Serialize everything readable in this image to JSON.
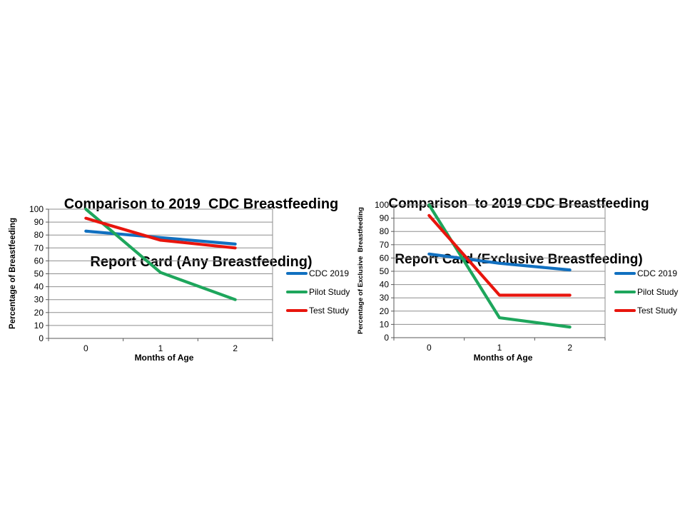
{
  "page": {
    "background": "#ffffff"
  },
  "colors": {
    "cdc_blue": "#1170C0",
    "pilot_green": "#1EA65C",
    "test_red": "#E8150D",
    "grid": "#8E8E8E",
    "axis": "#595959",
    "text": "#000000"
  },
  "chart_data": [
    {
      "type": "line",
      "title": "Comparison to 2019 CDC Breastfeeding Report Card (Any Breastfeeding)",
      "title_lines": [
        "Comparison to 2019  CDC Breastfeeding",
        "Report Card (Any Breastfeeding)"
      ],
      "xlabel": "Months of Age",
      "ylabel": "Percentage of Breastfeeding",
      "categories": [
        "0",
        "1",
        "2"
      ],
      "ylim": [
        0,
        100
      ],
      "ytick_step": 10,
      "grid": "horizontal",
      "legend_position": "right",
      "series": [
        {
          "name": "CDC 2019",
          "color": "#1170C0",
          "values": [
            83,
            78,
            73
          ]
        },
        {
          "name": "Pilot Study",
          "color": "#1EA65C",
          "values": [
            100,
            51,
            30
          ]
        },
        {
          "name": "Test Study",
          "color": "#E8150D",
          "values": [
            93,
            76,
            70
          ]
        }
      ]
    },
    {
      "type": "line",
      "title": "Comparison to 2019 CDC Breastfeeding Report Card (Exclusive Breastfeeding)",
      "title_lines": [
        "Comparison  to 2019 CDC Breastfeeding",
        "Report Card (Exclusive Breastfeeding)"
      ],
      "xlabel": "Months of Age",
      "ylabel": "Percentage of Exclusive  Breastfeeding",
      "categories": [
        "0",
        "1",
        "2"
      ],
      "ylim": [
        0,
        100
      ],
      "ytick_step": 10,
      "grid": "horizontal",
      "legend_position": "right",
      "series": [
        {
          "name": "CDC 2019",
          "color": "#1170C0",
          "values": [
            63,
            56,
            51
          ]
        },
        {
          "name": "Pilot Study",
          "color": "#1EA65C",
          "values": [
            100,
            15,
            8
          ]
        },
        {
          "name": "Test Study",
          "color": "#E8150D",
          "values": [
            92,
            32,
            32
          ]
        }
      ]
    }
  ]
}
